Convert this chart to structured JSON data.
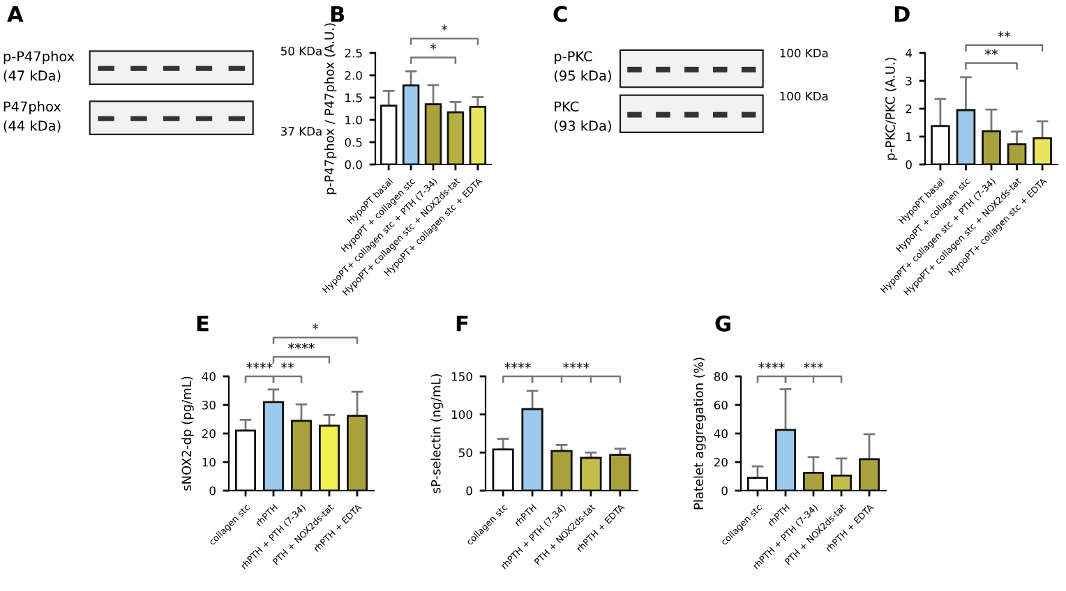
{
  "chart_data": [
    {
      "type": "other",
      "title": "A",
      "annotations": [
        "p-P47phox\n(47 kDa)",
        "P47phox\n(44 kDa)",
        "50 KDa",
        "37 KDa"
      ]
    },
    {
      "type": "bar",
      "title": "B",
      "ylabel": "p-P47phox / P47phox (A.U.)",
      "categories": [
        "HypoPT basal",
        "HypoPT + collagen stc",
        "HypoPT+ collagen stc + PTH (7-34)",
        "HypoPT+ collagen stc + NOX2ds-tat",
        "HypoPT+ collagen stc + EDTA"
      ],
      "values": [
        1.32,
        1.77,
        1.35,
        1.17,
        1.29
      ],
      "colors": [
        "#ffffff",
        "#9cc9ee",
        "#a9a23c",
        "#b5b040",
        "#e8e45c"
      ],
      "errors": [
        [
          1.32,
          1.65
        ],
        [
          1.77,
          2.09
        ],
        [
          1.35,
          1.78
        ],
        [
          1.17,
          1.4
        ],
        [
          1.29,
          1.51
        ]
      ],
      "ylim": [
        0,
        2.5
      ],
      "yticks": [
        {
          "value": 0,
          "label": "0.0"
        },
        {
          "value": 0.5,
          "label": "0.5"
        },
        {
          "value": 1,
          "label": "1.0"
        },
        {
          "value": 1.5,
          "label": "1.5"
        },
        {
          "value": 2,
          "label": "2.0"
        },
        {
          "value": 2.5,
          "label": "2.5"
        }
      ],
      "annotations": [
        "*",
        "*"
      ]
    },
    {
      "type": "other",
      "title": "C",
      "annotations": [
        "p-PKC\n(95 kDa)",
        "PKC\n(93 kDa)",
        "100 KDa",
        "100 KDa"
      ]
    },
    {
      "type": "bar",
      "title": "D",
      "ylabel": "p-PKC/PKC (A.U.)",
      "categories": [
        "HypoPT basal",
        "HypoPT + collagen stc",
        "HypoPT+ collagen stc + PTH (7-34)",
        "HypoPT+ collagen stc + NOX2ds-tat",
        "HypoPT+ collagen stc + EDTA"
      ],
      "values": [
        1.38,
        1.95,
        1.19,
        0.73,
        0.94
      ],
      "colors": [
        "#ffffff",
        "#9cc9ee",
        "#a9a23c",
        "#a9a23c",
        "#e8e45c"
      ],
      "errors": [
        [
          1.38,
          2.35
        ],
        [
          1.95,
          3.13
        ],
        [
          1.19,
          1.97
        ],
        [
          0.73,
          1.18
        ],
        [
          0.94,
          1.55
        ]
      ],
      "ylim": [
        0,
        4
      ],
      "yticks": [
        0,
        1,
        2,
        3,
        4
      ],
      "annotations": [
        "**",
        "**"
      ]
    },
    {
      "type": "bar",
      "title": "E",
      "ylabel": "sNOX2-dp (pg/mL)",
      "categories": [
        "collagen stc",
        "rhPTH",
        "rhPTH + PTH (7-34)",
        "PTH + NOX2ds-tat",
        "rhPTH + EDTA"
      ],
      "values": [
        21,
        31,
        24.4,
        22.7,
        26.2
      ],
      "colors": [
        "#ffffff",
        "#9cc9ee",
        "#a9a23c",
        "#f2ef50",
        "#a9a23c"
      ],
      "errors": [
        [
          21,
          24.8
        ],
        [
          31,
          35.4
        ],
        [
          24.4,
          30.2
        ],
        [
          22.7,
          26.5
        ],
        [
          26.2,
          34.6
        ]
      ],
      "ylim": [
        0,
        40
      ],
      "yticks": [
        0,
        10,
        20,
        30,
        40
      ],
      "annotations": [
        "****",
        "**",
        "****",
        "*"
      ]
    },
    {
      "type": "bar",
      "title": "F",
      "ylabel": "sP-selectin (ng/mL)",
      "categories": [
        "collagen stc",
        "rhPTH",
        "rhPTH + PTH (7-34)",
        "PTH + NOX2ds-tat",
        "rhPTH + EDTA"
      ],
      "values": [
        54,
        107,
        52,
        43,
        47
      ],
      "colors": [
        "#ffffff",
        "#9cc9ee",
        "#a9a23c",
        "#c2bd4a",
        "#a9a23c"
      ],
      "errors": [
        [
          54,
          68
        ],
        [
          107,
          131
        ],
        [
          52,
          60
        ],
        [
          43,
          50
        ],
        [
          47,
          55
        ]
      ],
      "ylim": [
        0,
        150
      ],
      "yticks": [
        0,
        50,
        100,
        150
      ],
      "annotations": [
        "****",
        "****"
      ]
    },
    {
      "type": "bar",
      "title": "G",
      "ylabel": "Platelet aggregation (%)",
      "categories": [
        "collagen stc",
        "rhPTH",
        "rhPTH + PTH (7-34)",
        "PTH + NOX2ds-tat",
        "rhPTH + EDTA"
      ],
      "values": [
        9,
        42.5,
        12.5,
        10.5,
        22
      ],
      "colors": [
        "#ffffff",
        "#9cc9ee",
        "#a9a23c",
        "#c2bd4a",
        "#a9a23c"
      ],
      "errors": [
        [
          9,
          17
        ],
        [
          42.5,
          71
        ],
        [
          12.5,
          23.5
        ],
        [
          10.5,
          22.5
        ],
        [
          22,
          39.5
        ]
      ],
      "ylim": [
        0,
        80
      ],
      "yticks": [
        0,
        20,
        40,
        60,
        80
      ],
      "annotations": [
        "****",
        "***"
      ]
    }
  ]
}
